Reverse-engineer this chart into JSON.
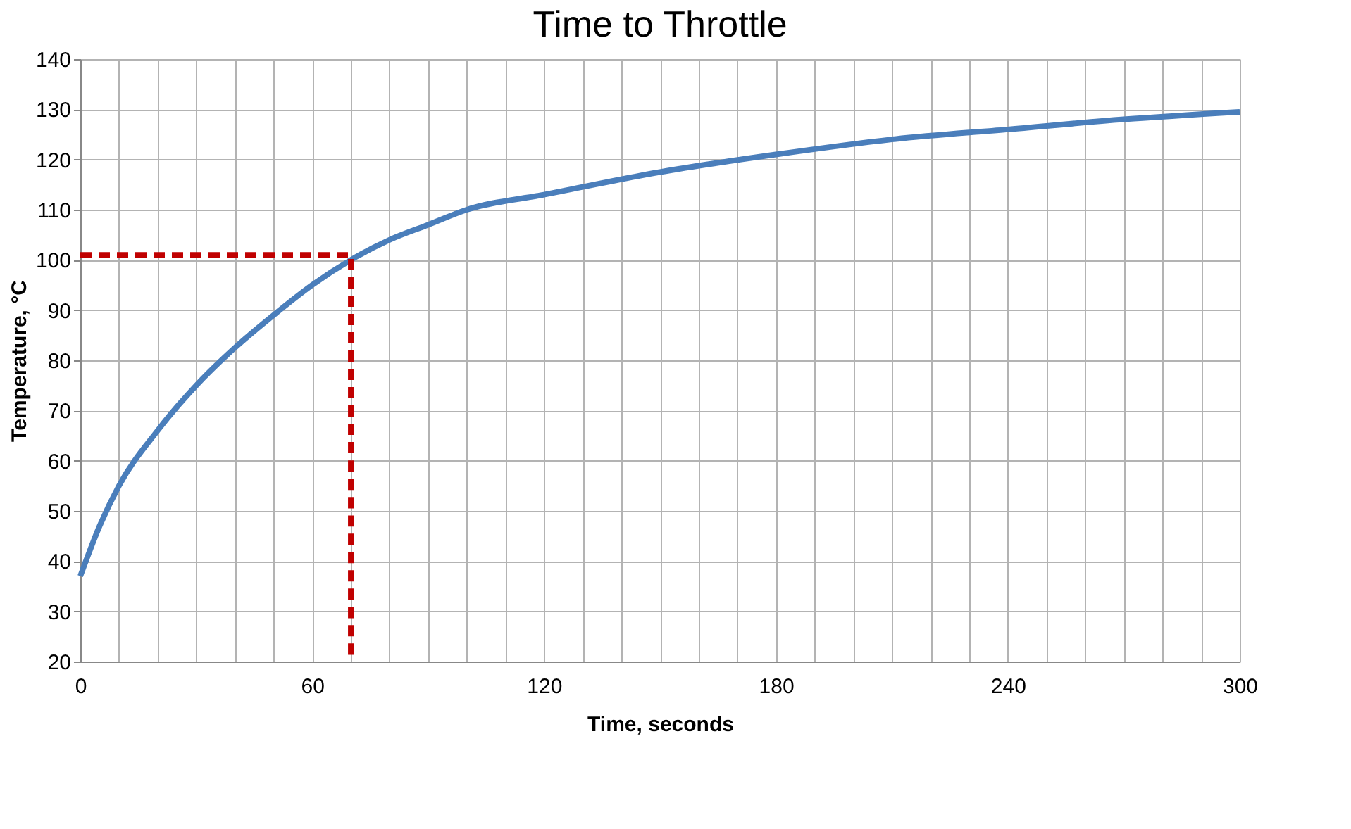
{
  "chart_data": {
    "type": "line",
    "title": "Time to Throttle",
    "xlabel": "Time, seconds",
    "ylabel": "Temperature, °C",
    "xlim": [
      0,
      300
    ],
    "xticks": [
      0,
      {
        "value": 10,
        "label": null
      },
      {
        "value": 20,
        "label": null
      },
      {
        "value": 30,
        "label": null
      },
      {
        "value": 40,
        "label": null
      },
      {
        "value": 50,
        "label": null
      },
      60,
      {
        "value": 70,
        "label": null
      },
      {
        "value": 80,
        "label": null
      },
      {
        "value": 90,
        "label": null
      },
      {
        "value": 100,
        "label": null
      },
      {
        "value": 110,
        "label": null
      },
      120,
      {
        "value": 130,
        "label": null
      },
      {
        "value": 140,
        "label": null
      },
      {
        "value": 150,
        "label": null
      },
      {
        "value": 160,
        "label": null
      },
      {
        "value": 170,
        "label": null
      },
      180,
      {
        "value": 190,
        "label": null
      },
      {
        "value": 200,
        "label": null
      },
      {
        "value": 210,
        "label": null
      },
      {
        "value": 220,
        "label": null
      },
      {
        "value": 230,
        "label": null
      },
      240,
      {
        "value": 250,
        "label": null
      },
      {
        "value": 260,
        "label": null
      },
      {
        "value": 270,
        "label": null
      },
      {
        "value": 280,
        "label": null
      },
      {
        "value": 290,
        "label": null
      },
      300
    ],
    "ylim": [
      20,
      140
    ],
    "yticks": [
      20,
      30,
      40,
      50,
      60,
      70,
      80,
      90,
      100,
      110,
      120,
      130,
      140
    ],
    "grid": true,
    "marker": "none",
    "series": [
      {
        "color": "#4a7ebb",
        "line_style": "solid",
        "x": [
          0,
          5,
          10,
          20,
          30,
          40,
          50,
          60,
          70,
          80,
          90,
          100,
          120,
          150,
          180,
          210,
          240,
          270,
          300
        ],
        "values": [
          37,
          47,
          55,
          66,
          75,
          82.5,
          89,
          95,
          100,
          104,
          107,
          110,
          113,
          117.5,
          121,
          124,
          126,
          128,
          129.5
        ]
      },
      {
        "color": "#c00000",
        "line_style": "dashed",
        "x": [
          0,
          70,
          70
        ],
        "values": [
          101,
          101,
          20
        ]
      }
    ]
  }
}
